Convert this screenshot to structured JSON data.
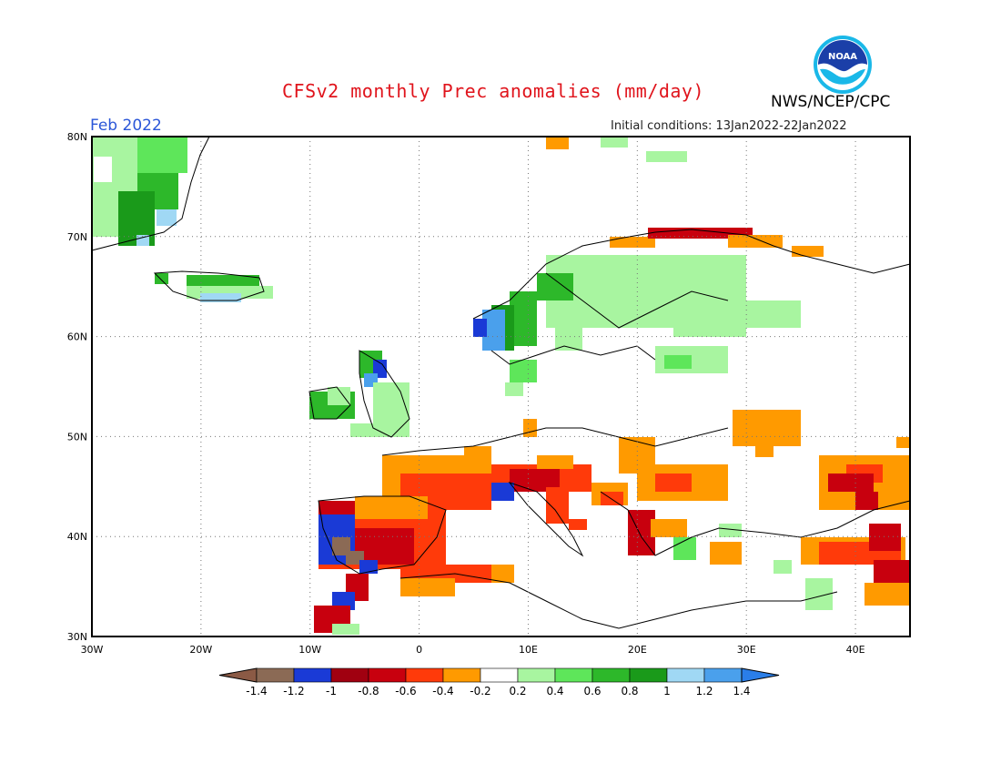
{
  "header": {
    "title": "CFSv2 monthly Prec anomalies (mm/day)",
    "agency": "NWS/NCEP/CPC",
    "month": "Feb 2022",
    "initial_conditions": "Initial conditions: 13Jan2022-22Jan2022",
    "logo_text": "NOAA"
  },
  "map": {
    "lat_labels": [
      "80N",
      "70N",
      "60N",
      "50N",
      "40N",
      "30N"
    ],
    "lon_labels": [
      "30W",
      "20W",
      "10W",
      "0",
      "10E",
      "20E",
      "30E",
      "40E"
    ],
    "extent": {
      "lon": [
        -30,
        45
      ],
      "lat": [
        30,
        80
      ]
    },
    "gridlines": "dotted"
  },
  "colorbar": {
    "labels": [
      "-1.4",
      "-1.2",
      "-1",
      "-0.8",
      "-0.6",
      "-0.4",
      "-0.2",
      "0.2",
      "0.4",
      "0.6",
      "0.8",
      "1",
      "1.2",
      "1.4"
    ],
    "colors": [
      "#8b6a55",
      "#1a3ad6",
      "#a00010",
      "#c8000e",
      "#ff3a0a",
      "#ff9a00",
      "#ffffff",
      "#a8f5a0",
      "#5ee65a",
      "#2db82a",
      "#1a9a1a",
      "#a0d8f4",
      "#4aa0ec"
    ],
    "low_arrow_color": "#8b5a45",
    "high_arrow_color": "#2a7ee8"
  }
}
